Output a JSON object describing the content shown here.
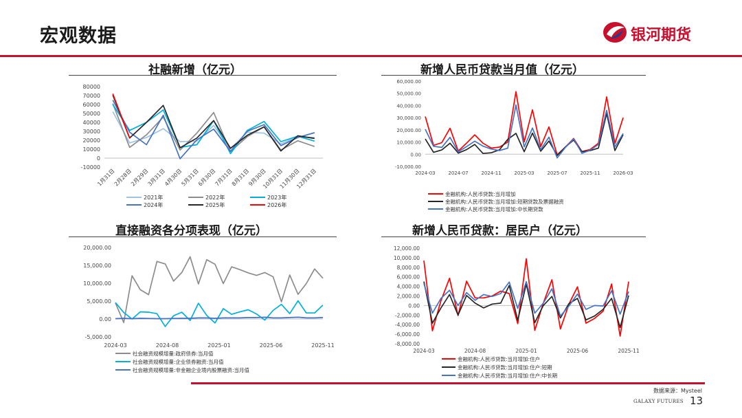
{
  "header": {
    "title": "宏观数据",
    "logo_text": "银河期货"
  },
  "footer": {
    "source": "数据来源：Mysteel",
    "brand": "GALAXY FUTURES",
    "page": "13"
  },
  "colors": {
    "accent": "#c8102e"
  },
  "chart_data": [
    {
      "id": "tsf",
      "type": "line",
      "title": "社融新增（亿元）",
      "categories": [
        "1月31日",
        "2月28日",
        "2月29日",
        "3月31日",
        "4月30日",
        "5月31日",
        "6月30日",
        "7月31日",
        "8月31日",
        "9月30日",
        "10月31日",
        "11月30日",
        "12月31日"
      ],
      "ylim": [
        -10000,
        80000
      ],
      "yticks": [
        -10000,
        0,
        10000,
        20000,
        30000,
        40000,
        50000,
        60000,
        70000,
        80000
      ],
      "legend_position": "bottom",
      "series": [
        {
          "name": "2021年",
          "color": "#9dc3e6",
          "values": [
            52000,
            17000,
            23000,
            33000,
            18500,
            19000,
            36500,
            10500,
            29000,
            28000,
            16000,
            24000,
            23000
          ]
        },
        {
          "name": "2022年",
          "color": "#8c8c8c",
          "values": [
            61000,
            12000,
            26000,
            46000,
            9000,
            28000,
            51000,
            7500,
            24000,
            35000,
            9000,
            19500,
            13000
          ]
        },
        {
          "name": "2023年",
          "color": "#00b0d8",
          "values": [
            60000,
            31000,
            40000,
            54000,
            12000,
            15000,
            42000,
            5000,
            31000,
            41000,
            18500,
            24500,
            19000
          ]
        },
        {
          "name": "2024年",
          "color": "#4472c4",
          "values": [
            65000,
            29000,
            15000,
            48000,
            -700,
            20500,
            32500,
            7700,
            30000,
            37500,
            14000,
            23000,
            28500
          ]
        },
        {
          "name": "2025年",
          "color": "#262626",
          "values": [
            70500,
            22500,
            40000,
            59000,
            11500,
            22500,
            42000,
            11000,
            25500,
            35000,
            8000,
            25000,
            22000
          ]
        },
        {
          "name": "2026年",
          "color": "#ff0000",
          "values": [
            72000,
            22500,
            null,
            51000,
            null,
            null,
            null,
            null,
            null,
            null,
            null,
            null,
            null
          ]
        }
      ]
    },
    {
      "id": "rmb-loans",
      "type": "line",
      "title": "新增人民币贷款当月值（亿元）",
      "x_tick_labels": [
        "2024-03",
        "2024-07",
        "2024-11",
        "2025-03",
        "2025-07",
        "2025-11",
        "2026-03"
      ],
      "ylim": [
        -10000,
        60000
      ],
      "yticks": [
        -10000,
        0,
        10000,
        20000,
        30000,
        40000,
        50000,
        60000
      ],
      "ytick_labels": [
        "-10,000.00",
        "0.00",
        "10,000.00",
        "20,000.00",
        "30,000.00",
        "40,000.00",
        "50,000.00",
        "60,000.00"
      ],
      "legend_position": "bottom",
      "series": [
        {
          "name": "金融机构:人民币贷款:当月增加",
          "color": "#ff0000",
          "values": [
            30900,
            7300,
            9500,
            21300,
            2600,
            9000,
            15900,
            9000,
            5000,
            5800,
            9900,
            51300,
            10100,
            36400,
            6200,
            22400,
            -500,
            5900,
            12900,
            2200,
            3900,
            9000,
            47100,
            8700,
            30000
          ]
        },
        {
          "name": "金融机构:人民币贷款:当月增加:短期贷款及票据融资",
          "color": "#262626",
          "values": [
            12500,
            1500,
            3500,
            9000,
            900,
            3700,
            8000,
            600,
            1200,
            3600,
            12200,
            17100,
            2000,
            17300,
            2500,
            10800,
            -1000,
            6000,
            11600,
            2000,
            3000,
            5000,
            33400,
            3000,
            16000
          ]
        },
        {
          "name": "金融机构:人民币贷款:当月增加:中长期贷款",
          "color": "#4472c4",
          "values": [
            20500,
            6500,
            5600,
            13800,
            1900,
            6200,
            10700,
            6600,
            4200,
            3000,
            4900,
            40400,
            6000,
            21500,
            3800,
            14000,
            -3000,
            5600,
            12600,
            700,
            3300,
            8000,
            36000,
            6000,
            17000
          ]
        }
      ]
    },
    {
      "id": "direct-financing",
      "type": "line",
      "title": "直接融资各分项表现（亿元）",
      "x_tick_labels": [
        "2024-03",
        "2024-08",
        "2025-01",
        "2025-06",
        "2025-11"
      ],
      "ylim": [
        -5000,
        20000
      ],
      "yticks": [
        -5000,
        0,
        5000,
        10000,
        15000,
        20000
      ],
      "ytick_labels": [
        "-5,000.00",
        "0.00",
        "5,000.00",
        "10,000.00",
        "15,000.00",
        "20,000.00"
      ],
      "legend_position": "bottom",
      "series": [
        {
          "name": "社会融资规模增量:政府债券:当月值",
          "color": "#8c8c8c",
          "values": [
            4500,
            -1000,
            12100,
            8200,
            6800,
            16100,
            15400,
            10600,
            13000,
            17400,
            9800,
            16600,
            15300,
            9900,
            14600,
            13800,
            12900,
            12200,
            13000,
            11800,
            4800,
            12300,
            6900,
            9900,
            14000,
            11400
          ]
        },
        {
          "name": "社会融资规模增量:企业债券融资:当月值",
          "color": "#00b0d8",
          "values": [
            4600,
            1800,
            0,
            2000,
            1900,
            1500,
            -2100,
            900,
            1900,
            -400,
            4400,
            1000,
            -1100,
            2900,
            1300,
            2000,
            2600,
            1400,
            -300,
            2400,
            4100,
            1500,
            5100,
            1700,
            1700,
            3900
          ]
        },
        {
          "name": "社会融资规模增量:非金融企业境内股票融资:当月值",
          "color": "#4472c4",
          "values": [
            100,
            200,
            100,
            200,
            150,
            100,
            100,
            150,
            200,
            200,
            300,
            300,
            200,
            300,
            300,
            300,
            400,
            400,
            500,
            300,
            300,
            400,
            500,
            300,
            300,
            400
          ]
        }
      ]
    },
    {
      "id": "household-loans",
      "type": "line",
      "title": "新增人民币贷款：居民户（亿元）",
      "x_tick_labels": [
        "2024-03",
        "2024-08",
        "2025-01",
        "2025-06",
        "2025-11"
      ],
      "ylim": [
        -8000,
        12000
      ],
      "yticks": [
        -8000,
        -6000,
        -4000,
        -2000,
        0,
        2000,
        4000,
        6000,
        8000,
        10000,
        12000
      ],
      "ytick_labels": [
        "-8,000.00",
        "-6,000.00",
        "-4,000.00",
        "-2,000.00",
        "0.00",
        "2,000.00",
        "4,000.00",
        "6,000.00",
        "8,000.00",
        "10,000.00",
        "12,000.00"
      ],
      "legend_position": "bottom",
      "series": [
        {
          "name": "金融机构:人民币贷款:当月增加:住户",
          "color": "#ff0000",
          "values": [
            9400,
            -5300,
            1000,
            5700,
            -2100,
            5100,
            1600,
            1600,
            2000,
            3000,
            2500,
            -3800,
            9800,
            -5200,
            500,
            5400,
            -4900,
            300,
            3900,
            -3700,
            -2700,
            -1200,
            4500,
            -6400,
            5000
          ]
        },
        {
          "name": "金融机构:人民币贷款:当月增加:住户:短期",
          "color": "#262626",
          "values": [
            5000,
            -3700,
            -500,
            2300,
            -2000,
            2100,
            500,
            -500,
            300,
            500,
            4200,
            -3100,
            4500,
            -3600,
            0,
            1900,
            -2600,
            400,
            1500,
            -3000,
            -2200,
            -800,
            1500,
            -4600,
            2100
          ]
        },
        {
          "name": "金融机构:人民币贷款:当月增加:住户:中长期",
          "color": "#4472c4",
          "values": [
            4600,
            -1600,
            1500,
            3200,
            0,
            2700,
            1100,
            2300,
            1900,
            2500,
            4900,
            -600,
            5000,
            -1600,
            500,
            3500,
            -2200,
            -100,
            2400,
            -800,
            0,
            -100,
            3100,
            -1800,
            2900
          ]
        }
      ]
    }
  ]
}
